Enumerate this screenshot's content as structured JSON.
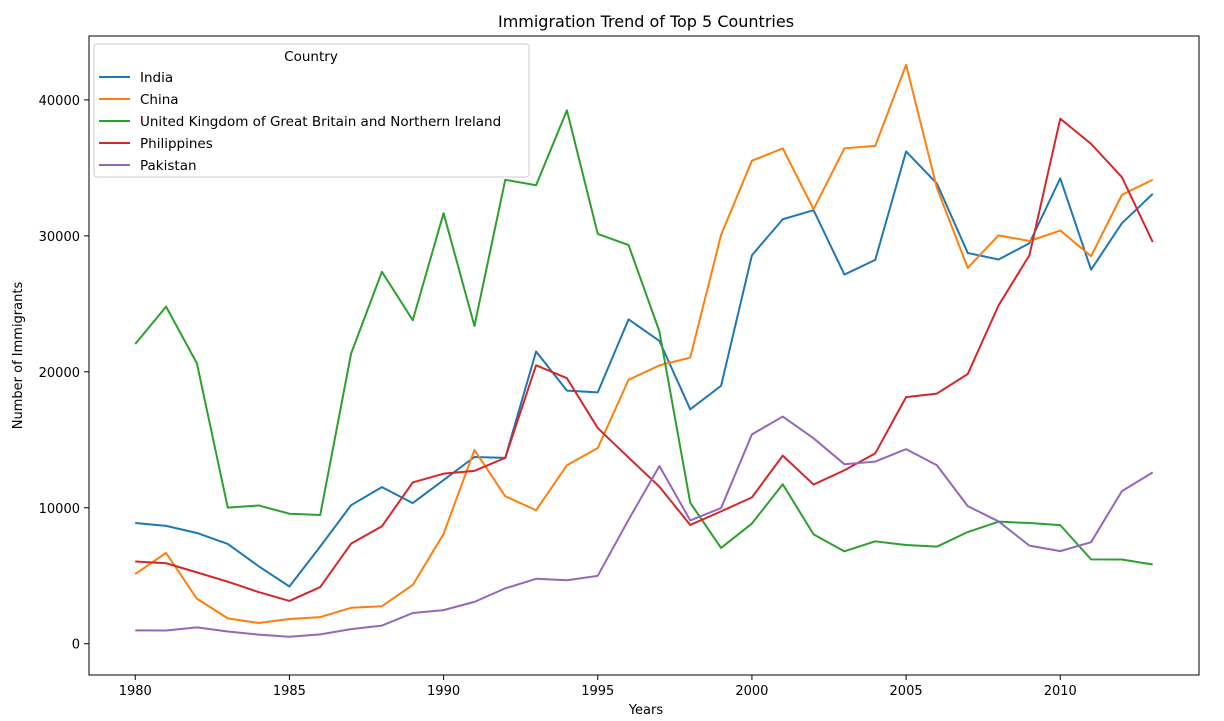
{
  "chart_data": {
    "type": "line",
    "title": "Immigration Trend of Top 5 Countries",
    "xlabel": "Years",
    "ylabel": "Number of Immigrants",
    "xlim": [
      1978.5,
      2014.5
    ],
    "ylim": [
      -2300,
      44700
    ],
    "xticks": [
      1980,
      1985,
      1990,
      1995,
      2000,
      2005,
      2010
    ],
    "yticks": [
      0,
      10000,
      20000,
      30000,
      40000
    ],
    "grid": false,
    "legend": {
      "title": "Country",
      "placement": "top-left"
    },
    "x": [
      1980,
      1981,
      1982,
      1983,
      1984,
      1985,
      1986,
      1987,
      1988,
      1989,
      1990,
      1991,
      1992,
      1993,
      1994,
      1995,
      1996,
      1997,
      1998,
      1999,
      2000,
      2001,
      2002,
      2003,
      2004,
      2005,
      2006,
      2007,
      2008,
      2009,
      2010,
      2011,
      2012,
      2013
    ],
    "series": [
      {
        "name": "India",
        "color": "#1f77b4",
        "values": [
          8880,
          8670,
          8147,
          7338,
          5704,
          4211,
          7150,
          10189,
          11522,
          10343,
          12041,
          13734,
          13673,
          21496,
          18620,
          18489,
          23859,
          22268,
          17241,
          18974,
          28572,
          31223,
          31889,
          27155,
          28235,
          36210,
          33848,
          28742,
          28261,
          29456,
          34235,
          27509,
          30933,
          33087
        ]
      },
      {
        "name": "China",
        "color": "#ff7f0e",
        "values": [
          5123,
          6682,
          3308,
          1863,
          1527,
          1816,
          1960,
          2643,
          2758,
          4323,
          8076,
          14255,
          10846,
          9817,
          13128,
          14398,
          19415,
          20475,
          21049,
          30069,
          35529,
          36434,
          31961,
          36439,
          36619,
          42584,
          33518,
          27642,
          30037,
          29622,
          30391,
          28502,
          33024,
          34129
        ]
      },
      {
        "name": "United Kingdom of Great Britain and Northern Ireland",
        "color": "#2ca02c",
        "values": [
          22045,
          24796,
          20620,
          10015,
          10170,
          9564,
          9470,
          21337,
          27359,
          23795,
          31668,
          23380,
          34123,
          33720,
          39231,
          30145,
          29322,
          22965,
          10367,
          7045,
          8840,
          11728,
          8046,
          6797,
          7533,
          7258,
          7140,
          8216,
          8979,
          8876,
          8724,
          6204,
          6195,
          5827
        ]
      },
      {
        "name": "Philippines",
        "color": "#d62728",
        "values": [
          6051,
          5921,
          5249,
          4562,
          3801,
          3150,
          4166,
          7360,
          8639,
          11865,
          12509,
          12718,
          13670,
          20479,
          19532,
          15864,
          13692,
          11549,
          8735,
          9734,
          10763,
          13836,
          11707,
          12758,
          14004,
          18139,
          18400,
          19837,
          24887,
          28573,
          38617,
          36765,
          34315,
          29544
        ]
      },
      {
        "name": "Pakistan",
        "color": "#9467bd",
        "values": [
          978,
          972,
          1201,
          900,
          668,
          514,
          691,
          1072,
          1334,
          2261,
          2470,
          3079,
          4071,
          4777,
          4666,
          4994,
          9125,
          13073,
          9068,
          9979,
          15400,
          16708,
          15110,
          13205,
          13399,
          14314,
          13127,
          10124,
          8994,
          7217,
          6811,
          7468,
          11227,
          12603
        ]
      }
    ]
  }
}
